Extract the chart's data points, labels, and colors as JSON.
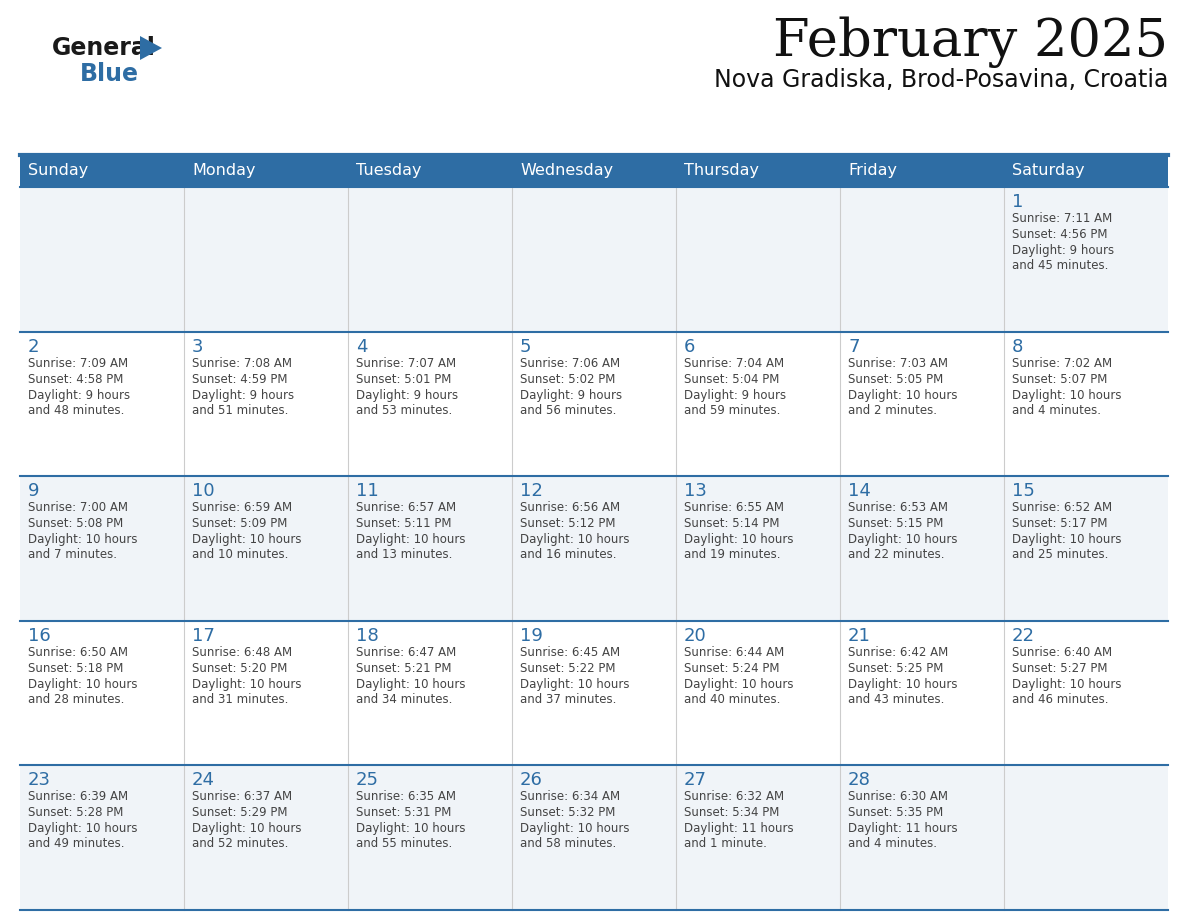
{
  "title": "February 2025",
  "subtitle": "Nova Gradiska, Brod-Posavina, Croatia",
  "header_color": "#2E6DA4",
  "header_text_color": "#FFFFFF",
  "days_of_week": [
    "Sunday",
    "Monday",
    "Tuesday",
    "Wednesday",
    "Thursday",
    "Friday",
    "Saturday"
  ],
  "background_color": "#FFFFFF",
  "row1_bg": "#F0F4F8",
  "row2_bg": "#FFFFFF",
  "border_color": "#2E6DA4",
  "cell_border_color": "#AAAAAA",
  "day_number_color": "#2E6DA4",
  "text_color": "#444444",
  "logo_triangle_color": "#2E6DA4",
  "calendar_data": [
    [
      null,
      null,
      null,
      null,
      null,
      null,
      {
        "day": "1",
        "sunrise": "7:11 AM",
        "sunset": "4:56 PM",
        "daylight": "9 hours\nand 45 minutes."
      }
    ],
    [
      {
        "day": "2",
        "sunrise": "7:09 AM",
        "sunset": "4:58 PM",
        "daylight": "9 hours\nand 48 minutes."
      },
      {
        "day": "3",
        "sunrise": "7:08 AM",
        "sunset": "4:59 PM",
        "daylight": "9 hours\nand 51 minutes."
      },
      {
        "day": "4",
        "sunrise": "7:07 AM",
        "sunset": "5:01 PM",
        "daylight": "9 hours\nand 53 minutes."
      },
      {
        "day": "5",
        "sunrise": "7:06 AM",
        "sunset": "5:02 PM",
        "daylight": "9 hours\nand 56 minutes."
      },
      {
        "day": "6",
        "sunrise": "7:04 AM",
        "sunset": "5:04 PM",
        "daylight": "9 hours\nand 59 minutes."
      },
      {
        "day": "7",
        "sunrise": "7:03 AM",
        "sunset": "5:05 PM",
        "daylight": "10 hours\nand 2 minutes."
      },
      {
        "day": "8",
        "sunrise": "7:02 AM",
        "sunset": "5:07 PM",
        "daylight": "10 hours\nand 4 minutes."
      }
    ],
    [
      {
        "day": "9",
        "sunrise": "7:00 AM",
        "sunset": "5:08 PM",
        "daylight": "10 hours\nand 7 minutes."
      },
      {
        "day": "10",
        "sunrise": "6:59 AM",
        "sunset": "5:09 PM",
        "daylight": "10 hours\nand 10 minutes."
      },
      {
        "day": "11",
        "sunrise": "6:57 AM",
        "sunset": "5:11 PM",
        "daylight": "10 hours\nand 13 minutes."
      },
      {
        "day": "12",
        "sunrise": "6:56 AM",
        "sunset": "5:12 PM",
        "daylight": "10 hours\nand 16 minutes."
      },
      {
        "day": "13",
        "sunrise": "6:55 AM",
        "sunset": "5:14 PM",
        "daylight": "10 hours\nand 19 minutes."
      },
      {
        "day": "14",
        "sunrise": "6:53 AM",
        "sunset": "5:15 PM",
        "daylight": "10 hours\nand 22 minutes."
      },
      {
        "day": "15",
        "sunrise": "6:52 AM",
        "sunset": "5:17 PM",
        "daylight": "10 hours\nand 25 minutes."
      }
    ],
    [
      {
        "day": "16",
        "sunrise": "6:50 AM",
        "sunset": "5:18 PM",
        "daylight": "10 hours\nand 28 minutes."
      },
      {
        "day": "17",
        "sunrise": "6:48 AM",
        "sunset": "5:20 PM",
        "daylight": "10 hours\nand 31 minutes."
      },
      {
        "day": "18",
        "sunrise": "6:47 AM",
        "sunset": "5:21 PM",
        "daylight": "10 hours\nand 34 minutes."
      },
      {
        "day": "19",
        "sunrise": "6:45 AM",
        "sunset": "5:22 PM",
        "daylight": "10 hours\nand 37 minutes."
      },
      {
        "day": "20",
        "sunrise": "6:44 AM",
        "sunset": "5:24 PM",
        "daylight": "10 hours\nand 40 minutes."
      },
      {
        "day": "21",
        "sunrise": "6:42 AM",
        "sunset": "5:25 PM",
        "daylight": "10 hours\nand 43 minutes."
      },
      {
        "day": "22",
        "sunrise": "6:40 AM",
        "sunset": "5:27 PM",
        "daylight": "10 hours\nand 46 minutes."
      }
    ],
    [
      {
        "day": "23",
        "sunrise": "6:39 AM",
        "sunset": "5:28 PM",
        "daylight": "10 hours\nand 49 minutes."
      },
      {
        "day": "24",
        "sunrise": "6:37 AM",
        "sunset": "5:29 PM",
        "daylight": "10 hours\nand 52 minutes."
      },
      {
        "day": "25",
        "sunrise": "6:35 AM",
        "sunset": "5:31 PM",
        "daylight": "10 hours\nand 55 minutes."
      },
      {
        "day": "26",
        "sunrise": "6:34 AM",
        "sunset": "5:32 PM",
        "daylight": "10 hours\nand 58 minutes."
      },
      {
        "day": "27",
        "sunrise": "6:32 AM",
        "sunset": "5:34 PM",
        "daylight": "11 hours\nand 1 minute."
      },
      {
        "day": "28",
        "sunrise": "6:30 AM",
        "sunset": "5:35 PM",
        "daylight": "11 hours\nand 4 minutes."
      },
      null
    ]
  ]
}
